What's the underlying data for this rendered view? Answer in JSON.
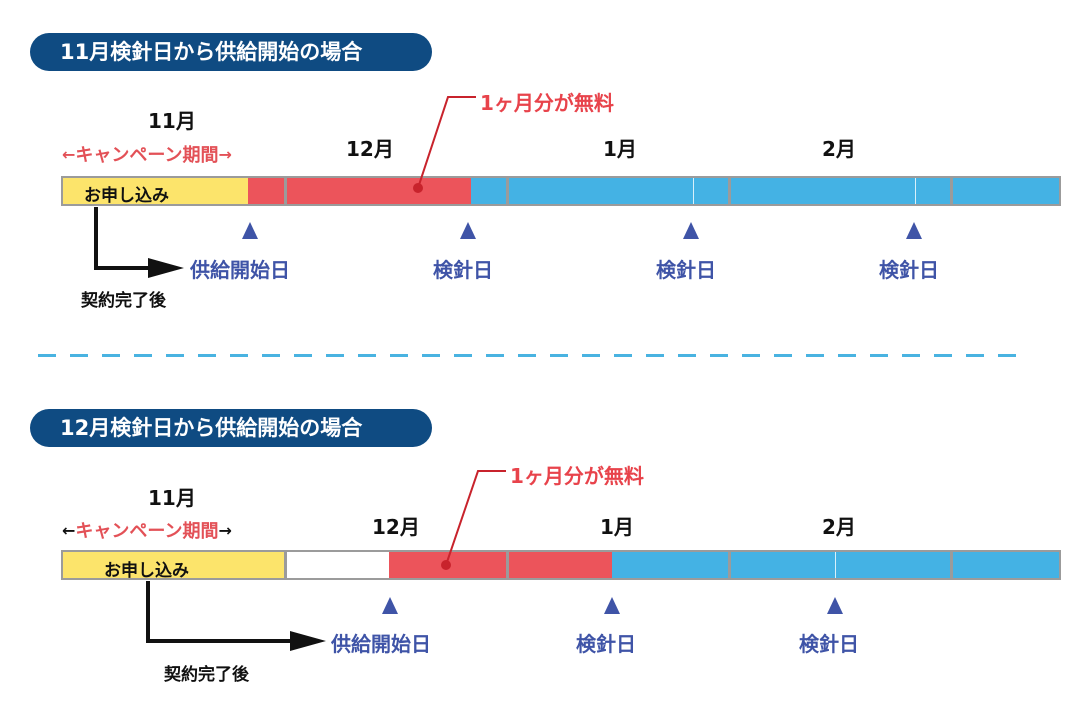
{
  "colors": {
    "header_bg": "#0f4b82",
    "apply_yellow": "#fce46b",
    "free_red": "#ec545b",
    "paid_blue": "#44b2e4",
    "marker_blue": "#3f54a7",
    "campaign_red": "#e35157",
    "separator": "#49b3e1"
  },
  "scenarios": [
    {
      "title": "11月検針日から供給開始の場合",
      "campaign_month": "11月",
      "campaign_label": "キャンペーン期間",
      "free_label": "1ヶ月分が無料",
      "months": [
        "12月",
        "1月",
        "2月"
      ],
      "apply_label": "お申し込み",
      "start_label": "供給開始日",
      "meter_labels": [
        "検針日",
        "検針日",
        "検針日"
      ],
      "contract_label": "契約完了後"
    },
    {
      "title": "12月検針日から供給開始の場合",
      "campaign_month": "11月",
      "campaign_label": "キャンペーン期間",
      "free_label": "1ヶ月分が無料",
      "months": [
        "12月",
        "1月",
        "2月"
      ],
      "apply_label": "お申し込み",
      "start_label": "供給開始日",
      "meter_labels": [
        "検針日",
        "検針日"
      ],
      "contract_label": "契約完了後"
    }
  ],
  "icons": {
    "left_arrow": "←",
    "right_arrow": "→",
    "marker": "triangle-up-marker"
  }
}
